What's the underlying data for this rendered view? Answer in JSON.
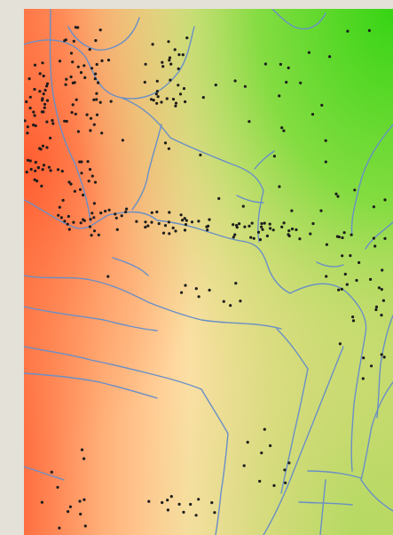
{
  "map": {
    "kind": "interpolated-surface-with-point-samples",
    "surface_colors": [
      "#ff6e40",
      "#ffb27a",
      "#ffe0a8",
      "#e3d97e",
      "#9edc57",
      "#3ed61a"
    ],
    "river_color": "#6a8fc6",
    "sample_point_color": "#1d1d1d",
    "background_color": "#e4e2d8"
  }
}
